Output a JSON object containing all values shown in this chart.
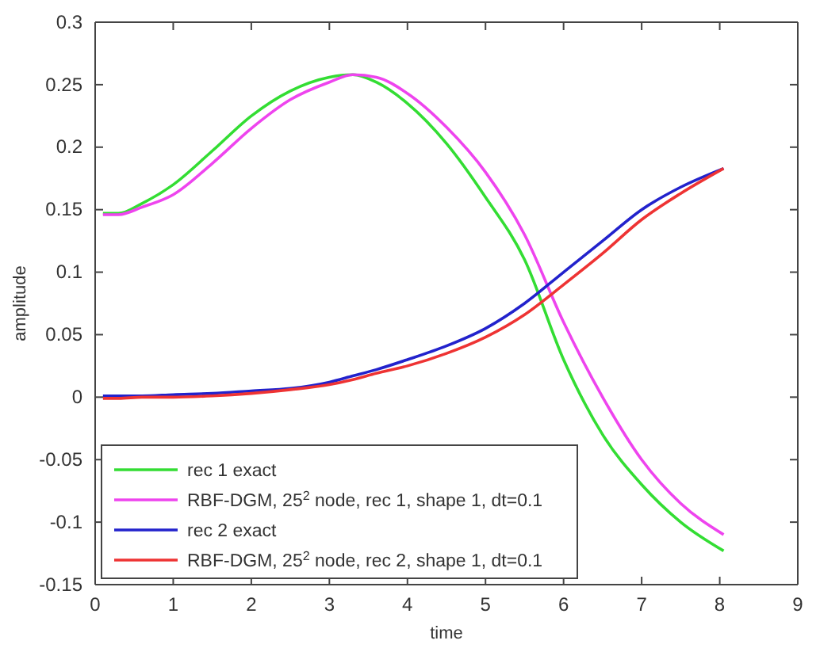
{
  "chart_data": {
    "type": "line",
    "xlabel": "time",
    "ylabel": "amplitude",
    "xlim": [
      0,
      9
    ],
    "xticks": [
      0,
      1,
      2,
      3,
      4,
      5,
      6,
      7,
      8,
      9
    ],
    "ylim": [
      -0.15,
      0.3
    ],
    "yticks": [
      -0.15,
      -0.1,
      -0.05,
      0,
      0.05,
      0.1,
      0.15,
      0.2,
      0.25,
      0.3
    ],
    "grid": false,
    "legend": "bottom left",
    "line_style": "solid",
    "marker": "none",
    "x": [
      0.1,
      0.3,
      0.6,
      1,
      1.5,
      2,
      2.5,
      3,
      3.3,
      3.6,
      4,
      4.5,
      5,
      5.5,
      6,
      6.5,
      7,
      7.5,
      8.05
    ],
    "series": [
      {
        "name": "rec 1 exact",
        "color": "#33dd33",
        "values": [
          0.147,
          0.147,
          0.155,
          0.17,
          0.197,
          0.225,
          0.245,
          0.256,
          0.258,
          0.252,
          0.235,
          0.203,
          0.16,
          0.11,
          0.03,
          -0.03,
          -0.07,
          -0.1,
          -0.123
        ]
      },
      {
        "name": "RBF-DGM, 25$^{2}$ node, rec 1, shape 1, dt=0.1",
        "color": "#ee44ee",
        "values": [
          0.146,
          0.146,
          0.152,
          0.162,
          0.187,
          0.215,
          0.238,
          0.252,
          0.258,
          0.256,
          0.243,
          0.216,
          0.18,
          0.13,
          0.06,
          0.0,
          -0.05,
          -0.085,
          -0.11
        ]
      },
      {
        "name": "rec 2 exact",
        "color": "#2222cc",
        "values": [
          0.001,
          0.001,
          0.001,
          0.002,
          0.003,
          0.005,
          0.007,
          0.012,
          0.017,
          0.022,
          0.03,
          0.041,
          0.055,
          0.075,
          0.1,
          0.125,
          0.15,
          0.168,
          0.183
        ]
      },
      {
        "name": "RBF-DGM, 25$^{2}$ node, rec 2, shape 1, dt=0.1",
        "color": "#ee3333",
        "values": [
          -0.001,
          -0.001,
          0,
          0,
          0.001,
          0.003,
          0.006,
          0.01,
          0.014,
          0.019,
          0.025,
          0.035,
          0.048,
          0.066,
          0.09,
          0.115,
          0.142,
          0.163,
          0.183
        ]
      }
    ]
  }
}
